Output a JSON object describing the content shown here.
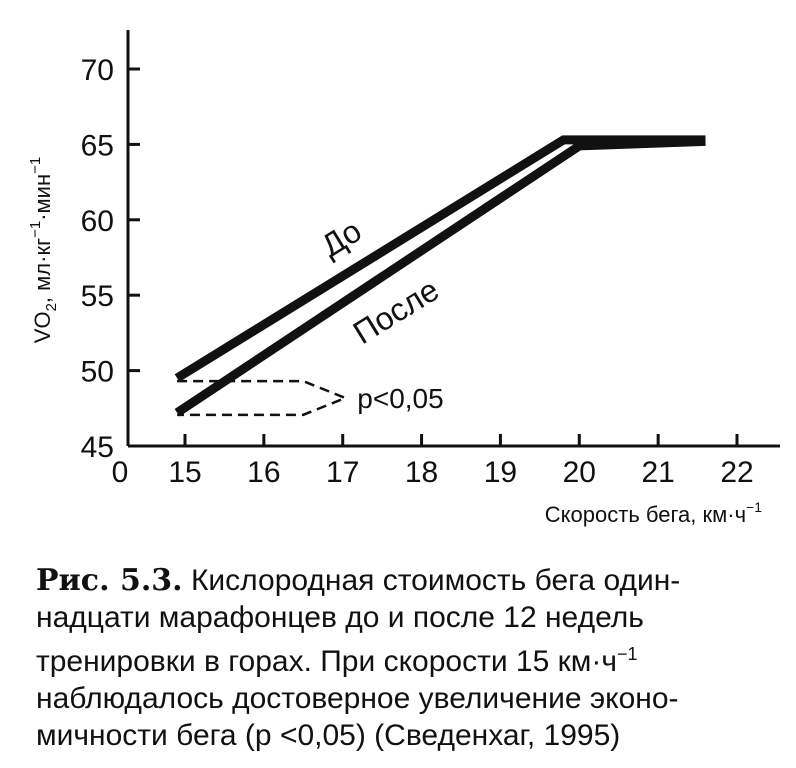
{
  "chart_data": {
    "type": "line",
    "title": "",
    "ylabel": "VO₂, мл·кг⁻¹·мин⁻¹",
    "ylabel_parts": {
      "a": "VO",
      "b": "2",
      "c": ", мл·кг",
      "d": "−1",
      "e": "·мин",
      "f": "−1"
    },
    "xlabel": "Скорость бега, км·ч⁻¹",
    "xlabel_parts": {
      "a": "Скорость бега, км·ч",
      "b": "−1"
    },
    "xlim": [
      0,
      22.5
    ],
    "ylim": [
      45,
      72
    ],
    "x_origin_label": "0",
    "x_ticks": [
      15,
      16,
      17,
      18,
      19,
      20,
      21,
      22
    ],
    "y_ticks": [
      45,
      50,
      55,
      60,
      65,
      70
    ],
    "series": [
      {
        "name": "До",
        "points": [
          [
            14.9,
            49.5
          ],
          [
            19.8,
            65.3
          ],
          [
            21.6,
            65.3
          ]
        ]
      },
      {
        "name": "После",
        "points": [
          [
            14.9,
            47.2
          ],
          [
            20.0,
            64.9
          ],
          [
            21.6,
            65.2
          ]
        ]
      }
    ],
    "annotation": "p<0,05",
    "grid": false
  },
  "caption": {
    "fig_num": "Рис. 5.3.",
    "lines": [
      "Кислородная стоимость бега один-",
      "надцати марафонцев до и после 12 недель",
      "тренировки в горах. При скорости 15 км·ч",
      "наблюдалось достоверное увеличение эконо-",
      "мичности бега (р <0,05) (Сведенхаг, 1995)"
    ],
    "line3_sup": "−1"
  }
}
